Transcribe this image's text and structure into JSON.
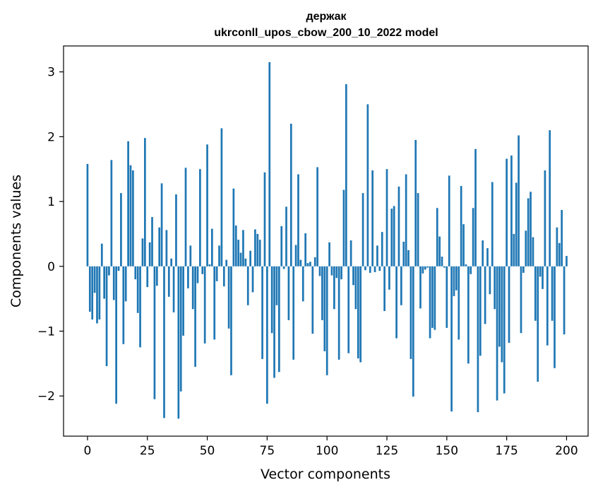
{
  "chart_data": {
    "type": "bar",
    "title": "держак",
    "subtitle": "ukrconll_upos_cbow_200_10_2022 model",
    "xlabel": "Vector components",
    "ylabel": "Components values",
    "xlim": [
      -10,
      209
    ],
    "ylim": [
      -2.62,
      3.4
    ],
    "xticks": [
      0,
      25,
      50,
      75,
      100,
      125,
      150,
      175,
      200
    ],
    "xtick_labels": [
      "0",
      "25",
      "50",
      "75",
      "100",
      "125",
      "150",
      "175",
      "200"
    ],
    "yticks": [
      -2,
      -1,
      0,
      1,
      2,
      3
    ],
    "ytick_labels": [
      "−2",
      "−1",
      "0",
      "1",
      "2",
      "3"
    ],
    "grid": false,
    "legend": "none",
    "bar_color": "#1f77b4",
    "values": [
      1.58,
      -0.7,
      -0.82,
      -0.41,
      -0.88,
      -0.82,
      0.35,
      -0.5,
      -1.54,
      -0.14,
      1.64,
      -0.52,
      -2.12,
      -0.07,
      1.13,
      -1.2,
      -0.54,
      1.93,
      1.56,
      1.48,
      -0.2,
      -0.72,
      -1.25,
      0.43,
      1.98,
      -0.32,
      0.37,
      0.76,
      -2.05,
      -0.3,
      0.6,
      1.28,
      -2.34,
      0.56,
      -0.47,
      0.12,
      -0.71,
      1.11,
      -2.35,
      -1.93,
      -1.07,
      1.52,
      -0.34,
      0.32,
      -0.66,
      -1.55,
      -0.26,
      1.5,
      -0.12,
      -1.19,
      1.88,
      0.03,
      0.58,
      -1.13,
      -0.23,
      0.32,
      2.13,
      -0.31,
      0.1,
      -0.96,
      -1.68,
      1.2,
      0.63,
      0.41,
      0.21,
      0.56,
      0.12,
      -0.6,
      0.24,
      -0.4,
      0.57,
      0.5,
      0.41,
      -1.43,
      1.45,
      -2.12,
      3.15,
      -1.03,
      -1.72,
      -0.6,
      -1.63,
      0.62,
      -0.04,
      0.92,
      -0.83,
      2.2,
      -1.44,
      0.33,
      1.42,
      0.1,
      -0.54,
      0.51,
      0.05,
      0.07,
      -1.04,
      0.14,
      1.53,
      -0.15,
      -0.83,
      -1.31,
      -1.68,
      0.37,
      -0.14,
      -0.66,
      -0.18,
      -1.44,
      -0.2,
      1.18,
      2.81,
      -1.34,
      0.4,
      -0.29,
      -0.66,
      -1.42,
      -1.48,
      1.13,
      -0.06,
      2.5,
      -0.1,
      1.48,
      -0.09,
      0.32,
      -0.07,
      0.53,
      -0.69,
      1.5,
      -0.36,
      0.89,
      0.93,
      -1.11,
      1.23,
      -0.6,
      0.38,
      1.42,
      0.25,
      -1.43,
      -2.01,
      1.95,
      1.13,
      -0.65,
      -0.11,
      -0.05,
      -0.02,
      -1.11,
      -0.95,
      -0.98,
      0.9,
      0.46,
      0.15,
      -0.02,
      -0.95,
      1.4,
      -2.24,
      -0.46,
      -0.37,
      -1.13,
      1.24,
      0.65,
      0.03,
      -1.5,
      -0.12,
      0.9,
      1.81,
      -2.25,
      -1.38,
      0.4,
      -0.89,
      0.28,
      -0.43,
      1.3,
      -0.66,
      -2.07,
      -1.24,
      -1.48,
      -1.96,
      1.66,
      -1.18,
      1.71,
      0.5,
      1.29,
      2.02,
      -1.03,
      -0.1,
      0.55,
      1.05,
      1.15,
      0.45,
      -0.84,
      -1.78,
      -0.16,
      -0.35,
      1.48,
      -1.22,
      2.1,
      -0.84,
      -1.57,
      0.6,
      0.36,
      0.87,
      -1.05,
      0.16
    ]
  }
}
